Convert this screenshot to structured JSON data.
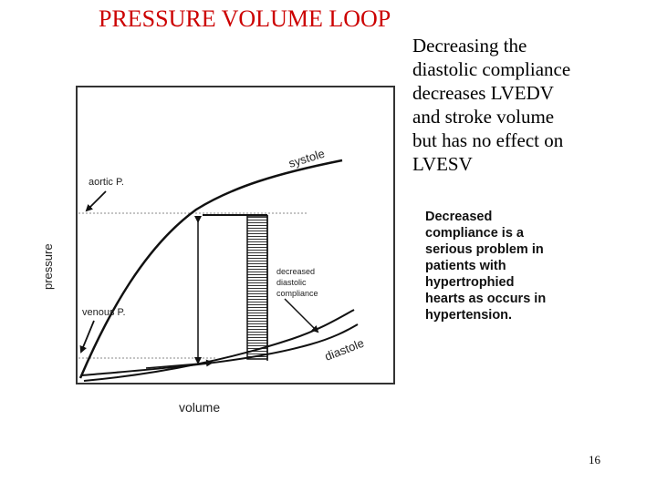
{
  "slide": {
    "title": "PRESSURE VOLUME LOOP",
    "description_lines": [
      "Decreasing the",
      "diastolic compliance",
      "decreases LVEDV",
      "and stroke volume",
      "but has no effect on",
      "LVESV"
    ],
    "page_number": "16"
  },
  "figure": {
    "axis_y_label": "pressure",
    "axis_x_label": "volume",
    "curve_labels": {
      "systole": "systole",
      "diastole": "diastole",
      "aortic": "aortic P.",
      "venous": "venous P."
    },
    "annotation_lines": [
      "decreased",
      "diastolic",
      "compliance"
    ],
    "note_lines": [
      "Decreased",
      "compliance is a",
      "serious problem in",
      "patients with",
      "hypertrophied",
      "hearts as occurs in",
      "hypertension."
    ]
  }
}
